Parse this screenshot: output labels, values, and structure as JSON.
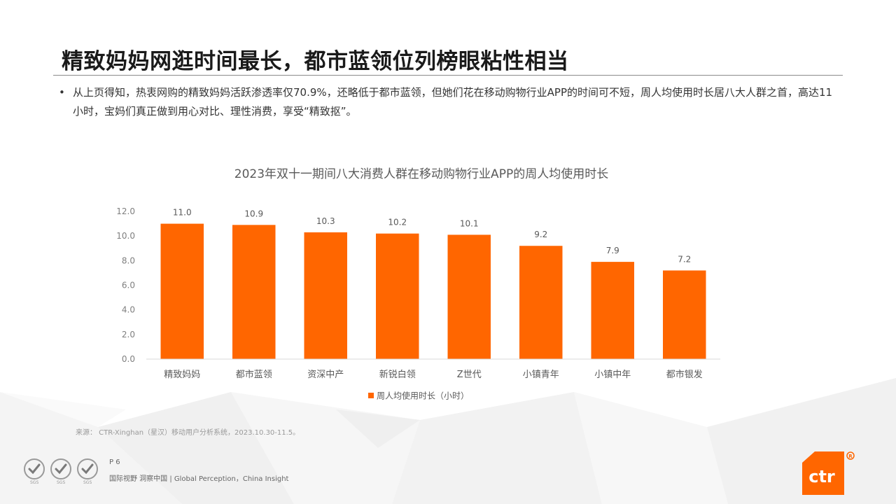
{
  "slide": {
    "title": "精致妈妈网逛时间最长，都市蓝领位列榜眼粘性相当",
    "bullet_symbol": "•",
    "bullet_text": "从上页得知，热衷网购的精致妈妈活跃渗透率仅70.9%，还略低于都市蓝领，但她们花在移动购物行业APP的时间可不短，周人均使用时长居八大人群之首，高达11小时，宝妈们真正做到用心对比、理性消费，享受“精致抠”。",
    "source": "来源： CTR-Xinghan（星汉）移动用户分析系统，2023.10.30-11.5。",
    "page_number": "P 6",
    "tagline": "国际视野  洞察中国 |  Global Perception，China Insight",
    "logo_text": "ctr",
    "accent_color": "#ff6600"
  },
  "chart_data": {
    "type": "bar",
    "title": "2023年双十一期间八大消费人群在移动购物行业APP的周人均使用时长",
    "categories": [
      "精致妈妈",
      "都市蓝领",
      "资深中产",
      "新锐白领",
      "Z世代",
      "小镇青年",
      "小镇中年",
      "都市银发"
    ],
    "series": [
      {
        "name": "周人均使用时长（小时）",
        "values": [
          11.0,
          10.9,
          10.3,
          10.2,
          10.1,
          9.2,
          7.9,
          7.2
        ]
      }
    ],
    "ylim": [
      0,
      12
    ],
    "yticks": [
      "0.0",
      "2.0",
      "4.0",
      "6.0",
      "8.0",
      "10.0",
      "12.0"
    ],
    "value_labels": [
      "11.0",
      "10.9",
      "10.3",
      "10.2",
      "10.1",
      "9.2",
      "7.9",
      "7.2"
    ],
    "grid": false,
    "legend": "bottom",
    "bar_color": "#ff6600"
  }
}
